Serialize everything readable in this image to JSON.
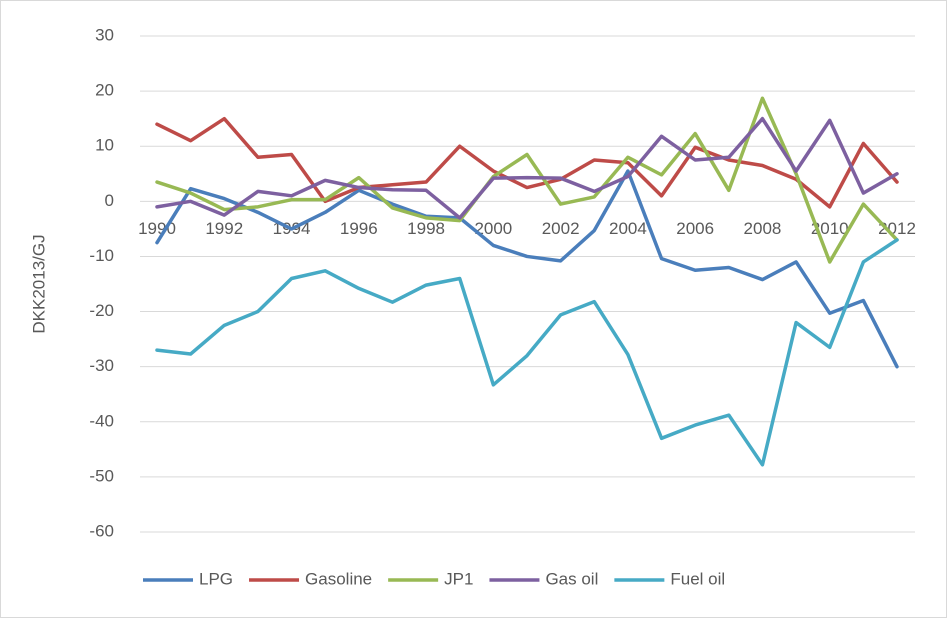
{
  "chart_data": {
    "type": "line",
    "y_label": "DKK2013/GJ",
    "categories": [
      "1990",
      null,
      "1992",
      null,
      "1994",
      null,
      "1996",
      null,
      "1998",
      null,
      "2000",
      null,
      "2002",
      null,
      "2004",
      null,
      "2006",
      null,
      "2008",
      null,
      "2010",
      null,
      "2012"
    ],
    "ylim": [
      -60,
      30
    ],
    "yticks": [
      -60,
      -50,
      -40,
      -30,
      -20,
      -10,
      0,
      10,
      20,
      30
    ],
    "grid": true,
    "legend": "bottom",
    "series": [
      {
        "name": "LPG",
        "color": "#4a7ebb",
        "values": [
          -7.5,
          2.3,
          0.5,
          -2,
          -5,
          -2,
          2,
          -0.5,
          -2.7,
          -3,
          -8,
          -10,
          -10.8,
          -5.3,
          5.5,
          -10.4,
          -12.5,
          -12,
          -14.2,
          -11,
          -20.3,
          -18,
          -30
        ]
      },
      {
        "name": "Gasoline",
        "color": "#be4b48",
        "values": [
          14,
          11,
          15,
          8,
          8.5,
          0,
          2.5,
          3,
          3.5,
          10,
          5.5,
          2.5,
          4,
          7.5,
          7,
          1,
          9.8,
          7.5,
          6.5,
          4,
          -1,
          10.5,
          3.5
        ]
      },
      {
        "name": "JP1",
        "color": "#98b954",
        "values": [
          3.5,
          1.5,
          -1.5,
          -1,
          0.3,
          0.3,
          4.3,
          -1.2,
          -3,
          -3.5,
          4.5,
          8.5,
          -0.5,
          0.8,
          8,
          4.8,
          12.3,
          2,
          18.7,
          5,
          -11,
          -0.5,
          -7
        ]
      },
      {
        "name": "Gas oil",
        "color": "#7d60a0",
        "values": [
          -1,
          0,
          -2.5,
          1.8,
          1,
          3.8,
          2.5,
          2.1,
          2,
          -3,
          4.2,
          4.3,
          4.2,
          1.8,
          4.5,
          11.8,
          7.5,
          8,
          15,
          5.5,
          14.7,
          1.5,
          5
        ]
      },
      {
        "name": "Fuel oil",
        "color": "#46aac5",
        "values": [
          -27,
          -27.7,
          -22.5,
          -20,
          -14,
          -12.6,
          -15.8,
          -18.3,
          -15.2,
          -14,
          -33.3,
          -28,
          -20.6,
          -18.2,
          -27.8,
          -43,
          -40.6,
          -38.8,
          -47.8,
          -22,
          -26.5,
          -11,
          -7
        ]
      }
    ]
  }
}
